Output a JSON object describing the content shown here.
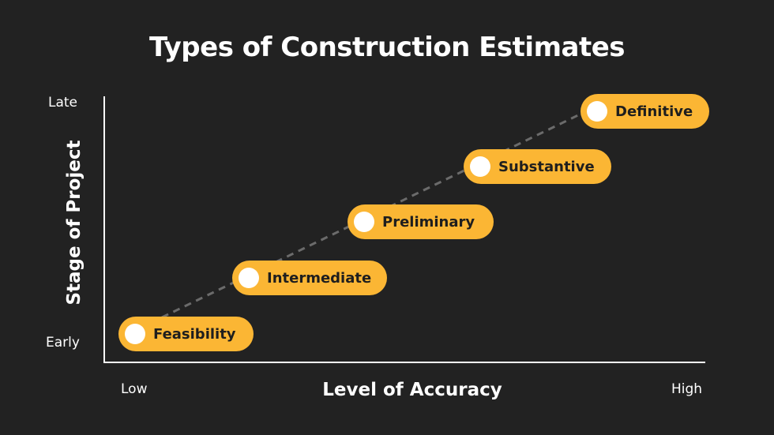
{
  "title": "Types of Construction Estimates",
  "axes": {
    "y_label": "Stage of Project",
    "y_ticks": {
      "top": "Late",
      "bottom": "Early"
    },
    "x_label": "Level of Accuracy",
    "x_ticks": {
      "left": "Low",
      "right": "High"
    }
  },
  "stages": [
    {
      "label": "Feasibility"
    },
    {
      "label": "Intermediate"
    },
    {
      "label": "Preliminary"
    },
    {
      "label": "Substantive"
    },
    {
      "label": "Definitive"
    }
  ],
  "colors": {
    "background": "#222222",
    "pill": "#FBB634",
    "dot": "#ffffff",
    "connector": "#6b6b6b",
    "axis": "#ffffff"
  }
}
